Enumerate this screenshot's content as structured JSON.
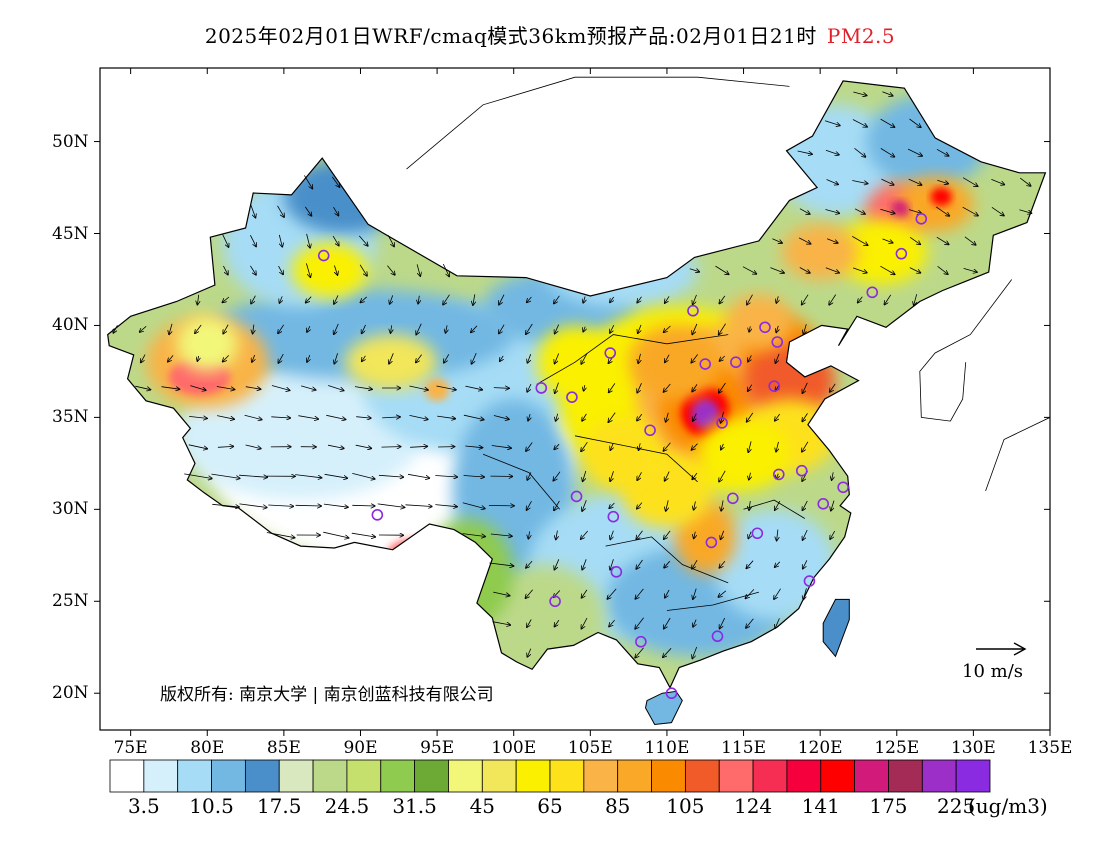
{
  "title": {
    "main": "2025年02月01日WRF/cmaq模式36km预报产品:02月01日21时",
    "pollutant": "PM2.5"
  },
  "map": {
    "lon_range": [
      73,
      135
    ],
    "lat_range": [
      18,
      54
    ],
    "x_ticks": [
      "75E",
      "80E",
      "85E",
      "90E",
      "95E",
      "100E",
      "105E",
      "110E",
      "115E",
      "120E",
      "125E",
      "130E",
      "135E"
    ],
    "y_ticks": [
      "20N",
      "25N",
      "30N",
      "35N",
      "40N",
      "45N",
      "50N"
    ],
    "copyright": "版权所有: 南京大学 | 南京创蓝科技有限公司",
    "wind_reference": "10 m/s",
    "pm25_hotspots": [
      {
        "lon": 112.5,
        "lat": 35.5,
        "level": 225
      },
      {
        "lon": 113.5,
        "lat": 34.8,
        "level": 175
      },
      {
        "lon": 117.2,
        "lat": 36.8,
        "level": 141
      },
      {
        "lon": 125.0,
        "lat": 46.5,
        "level": 141
      },
      {
        "lon": 127.8,
        "lat": 47.0,
        "level": 124
      },
      {
        "lon": 93.5,
        "lat": 27.2,
        "level": 124
      }
    ],
    "station_markers": [
      {
        "lon": 87.6,
        "lat": 43.8
      },
      {
        "lon": 91.1,
        "lat": 29.7
      },
      {
        "lon": 101.8,
        "lat": 36.6
      },
      {
        "lon": 103.8,
        "lat": 36.1
      },
      {
        "lon": 106.3,
        "lat": 38.5
      },
      {
        "lon": 111.7,
        "lat": 40.8
      },
      {
        "lon": 112.5,
        "lat": 37.9
      },
      {
        "lon": 114.5,
        "lat": 38.0
      },
      {
        "lon": 116.4,
        "lat": 39.9
      },
      {
        "lon": 117.2,
        "lat": 39.1
      },
      {
        "lon": 117.0,
        "lat": 36.7
      },
      {
        "lon": 113.6,
        "lat": 34.7
      },
      {
        "lon": 108.9,
        "lat": 34.3
      },
      {
        "lon": 104.1,
        "lat": 30.7
      },
      {
        "lon": 106.5,
        "lat": 29.6
      },
      {
        "lon": 114.3,
        "lat": 30.6
      },
      {
        "lon": 112.9,
        "lat": 28.2
      },
      {
        "lon": 115.9,
        "lat": 28.7
      },
      {
        "lon": 117.3,
        "lat": 31.9
      },
      {
        "lon": 118.8,
        "lat": 32.1
      },
      {
        "lon": 121.5,
        "lat": 31.2
      },
      {
        "lon": 120.2,
        "lat": 30.3
      },
      {
        "lon": 119.3,
        "lat": 26.1
      },
      {
        "lon": 113.3,
        "lat": 23.1
      },
      {
        "lon": 108.3,
        "lat": 22.8
      },
      {
        "lon": 106.7,
        "lat": 26.6
      },
      {
        "lon": 102.7,
        "lat": 25.0
      },
      {
        "lon": 110.3,
        "lat": 20.0
      },
      {
        "lon": 123.4,
        "lat": 41.8
      },
      {
        "lon": 125.3,
        "lat": 43.9
      },
      {
        "lon": 126.6,
        "lat": 45.8
      }
    ]
  },
  "colorbar": {
    "colors": [
      "#ffffff",
      "#d6f0fb",
      "#a6dcf5",
      "#72b8e3",
      "#4a8fc9",
      "#d9e8bf",
      "#bcd98a",
      "#c6e06e",
      "#8fcb4e",
      "#6caa35",
      "#f2f77a",
      "#f2e65a",
      "#faf000",
      "#fde11a",
      "#f9b347",
      "#f9a828",
      "#fa8a00",
      "#f15a29",
      "#ff6b6b",
      "#f62e54",
      "#f5003c",
      "#ff0000",
      "#d21a7a",
      "#a32b55",
      "#9b2fc8",
      "#8a2be2"
    ],
    "labels": [
      "3.5",
      "10.5",
      "17.5",
      "24.5",
      "31.5",
      "45",
      "65",
      "85",
      "105",
      "124",
      "141",
      "175",
      "225"
    ],
    "unit": "(ug/m3)"
  }
}
